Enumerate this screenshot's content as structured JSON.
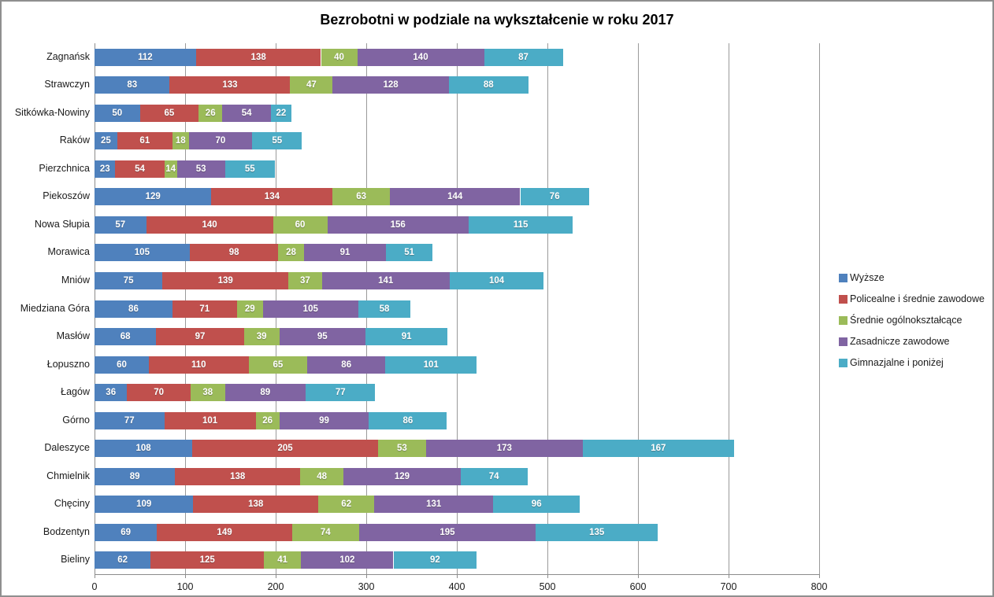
{
  "window": {
    "background": "#ffffff",
    "frame_border_color": "#8f8f8f"
  },
  "chart_data": {
    "type": "bar",
    "orientation": "horizontal",
    "stacked": true,
    "title": "Bezrobotni w podziale na wykształcenie w roku 2017",
    "categories": [
      "Zagnańsk",
      "Strawczyn",
      "Sitkówka-Nowiny",
      "Raków",
      "Pierzchnica",
      "Piekoszów",
      "Nowa Słupia",
      "Morawica",
      "Mniów",
      "Miedziana Góra",
      "Masłów",
      "Łopuszno",
      "Łagów",
      "Górno",
      "Daleszyce",
      "Chmielnik",
      "Chęciny",
      "Bodzentyn",
      "Bieliny"
    ],
    "series": [
      {
        "name": "Wyższe",
        "color": "#4F81BD",
        "values": [
          112,
          83,
          50,
          25,
          23,
          129,
          57,
          105,
          75,
          86,
          68,
          60,
          36,
          77,
          108,
          89,
          109,
          69,
          62
        ]
      },
      {
        "name": "Policealne i średnie zawodowe",
        "color": "#C0504D",
        "values": [
          138,
          133,
          65,
          61,
          54,
          134,
          140,
          98,
          139,
          71,
          97,
          110,
          70,
          101,
          205,
          138,
          138,
          149,
          125
        ]
      },
      {
        "name": "Średnie ogólnokształcące",
        "color": "#9BBB59",
        "values": [
          40,
          47,
          26,
          18,
          14,
          63,
          60,
          28,
          37,
          29,
          39,
          65,
          38,
          26,
          53,
          48,
          62,
          74,
          41
        ]
      },
      {
        "name": "Zasadnicze zawodowe",
        "color": "#8064A2",
        "values": [
          140,
          128,
          54,
          70,
          53,
          144,
          156,
          91,
          141,
          105,
          95,
          86,
          89,
          99,
          173,
          129,
          131,
          195,
          102
        ]
      },
      {
        "name": "Gimnazjalne i poniżej",
        "color": "#4BACC6",
        "values": [
          87,
          88,
          22,
          55,
          55,
          76,
          115,
          51,
          104,
          58,
          91,
          101,
          77,
          86,
          167,
          74,
          96,
          135,
          92
        ]
      }
    ],
    "xlim": [
      0,
      800
    ],
    "x_ticks": [
      0,
      100,
      200,
      300,
      400,
      500,
      600,
      700,
      800
    ],
    "grid": true,
    "gridline_color": "#9a9a9a",
    "axis_color": "#8c8c8c",
    "value_labels": "inside, white bold",
    "legend_position": "right"
  }
}
